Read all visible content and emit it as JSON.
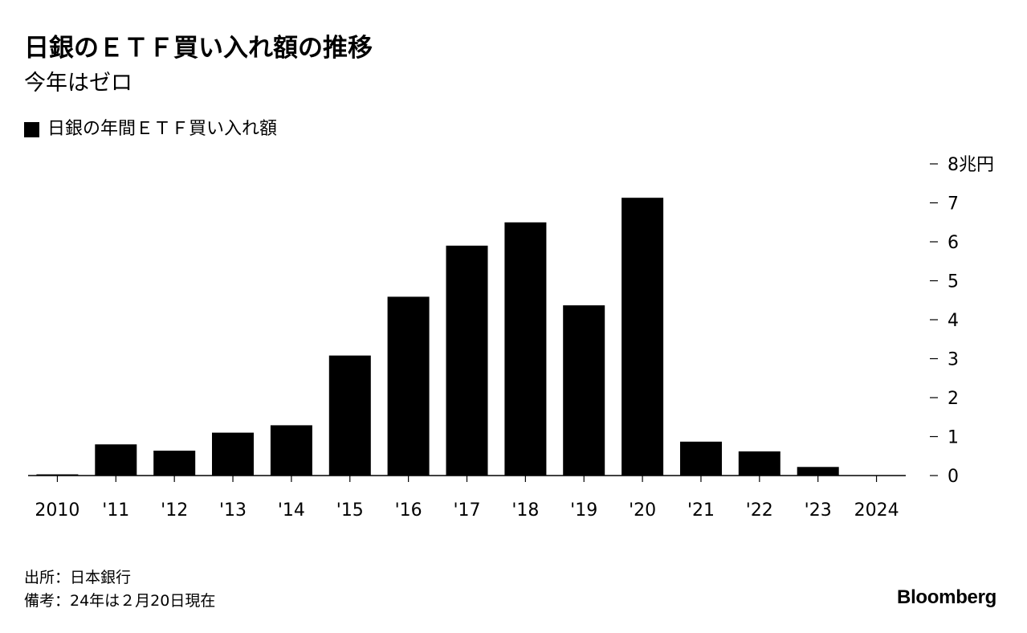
{
  "header": {
    "title": "日銀のＥＴＦ買い入れ額の推移",
    "subtitle": "今年はゼロ"
  },
  "legend": {
    "label": "日銀の年間ＥＴＦ買い入れ額",
    "color": "#000000"
  },
  "footnotes": {
    "source": "出所：日本銀行",
    "note": "備考：24年は２月20日現在"
  },
  "brand": {
    "logo_text": "Bloomberg"
  },
  "chart_data": {
    "type": "bar",
    "categories": [
      "2010",
      "'11",
      "'12",
      "'13",
      "'14",
      "'15",
      "'16",
      "'17",
      "'18",
      "'19",
      "'20",
      "'21",
      "'22",
      "'23",
      "2024"
    ],
    "series": [
      {
        "name": "日銀の年間ＥＴＦ買い入れ額",
        "values": [
          0.03,
          0.8,
          0.64,
          1.1,
          1.29,
          3.08,
          4.59,
          5.9,
          6.5,
          4.37,
          7.13,
          0.87,
          0.62,
          0.22,
          0
        ],
        "color": "#000000"
      }
    ],
    "ylim": [
      0,
      8
    ],
    "yticks": [
      {
        "value": 0,
        "label": "0"
      },
      {
        "value": 1,
        "label": "1"
      },
      {
        "value": 2,
        "label": "2"
      },
      {
        "value": 3,
        "label": "3"
      },
      {
        "value": 4,
        "label": "4"
      },
      {
        "value": 5,
        "label": "5"
      },
      {
        "value": 6,
        "label": "6"
      },
      {
        "value": 7,
        "label": "7"
      },
      {
        "value": 8,
        "label": "8兆円"
      }
    ],
    "y_axis_position": "right",
    "grid": false
  }
}
